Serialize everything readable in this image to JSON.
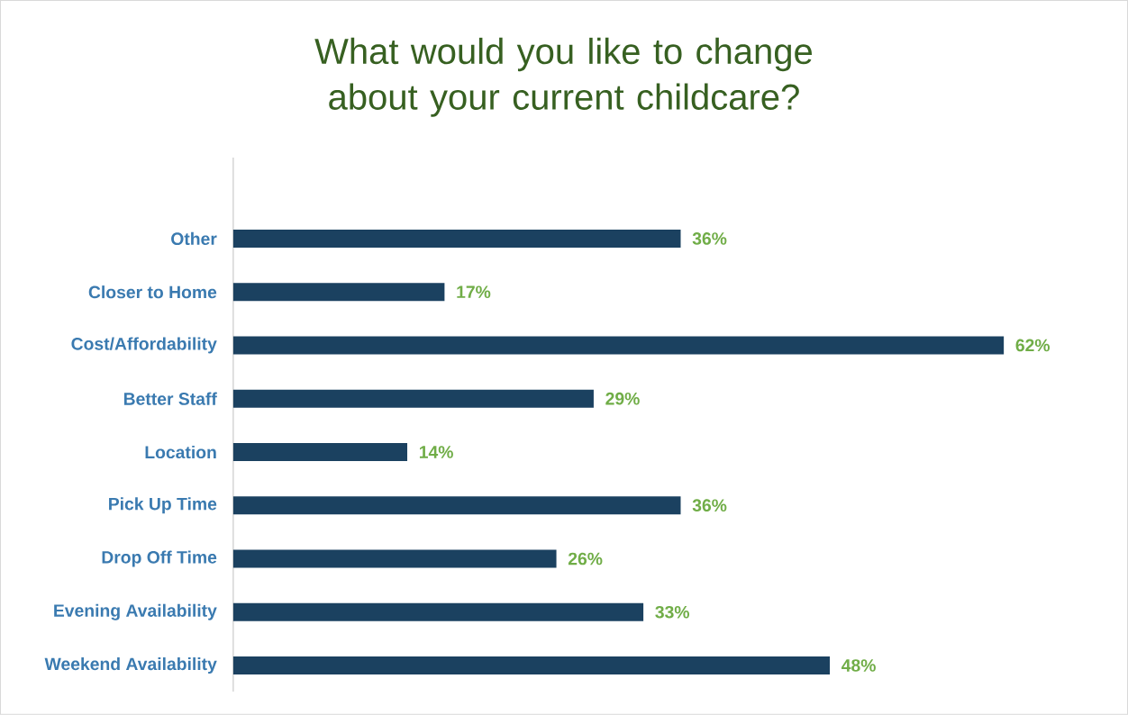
{
  "chart_data": {
    "type": "bar",
    "orientation": "horizontal",
    "title": "What would you like to change about your current childcare?",
    "categories": [
      "Other",
      "Closer to Home",
      "Cost/Affordability",
      "Better Staff",
      "Location",
      "Pick Up Time",
      "Drop Off Time",
      "Evening Availability",
      "Weekend Availability"
    ],
    "values": [
      36,
      17,
      62,
      29,
      14,
      36,
      26,
      33,
      48
    ],
    "value_labels": [
      "36%",
      "17%",
      "62%",
      "29%",
      "14%",
      "36%",
      "26%",
      "33%",
      "48%"
    ],
    "color": "#1b4160"
  }
}
